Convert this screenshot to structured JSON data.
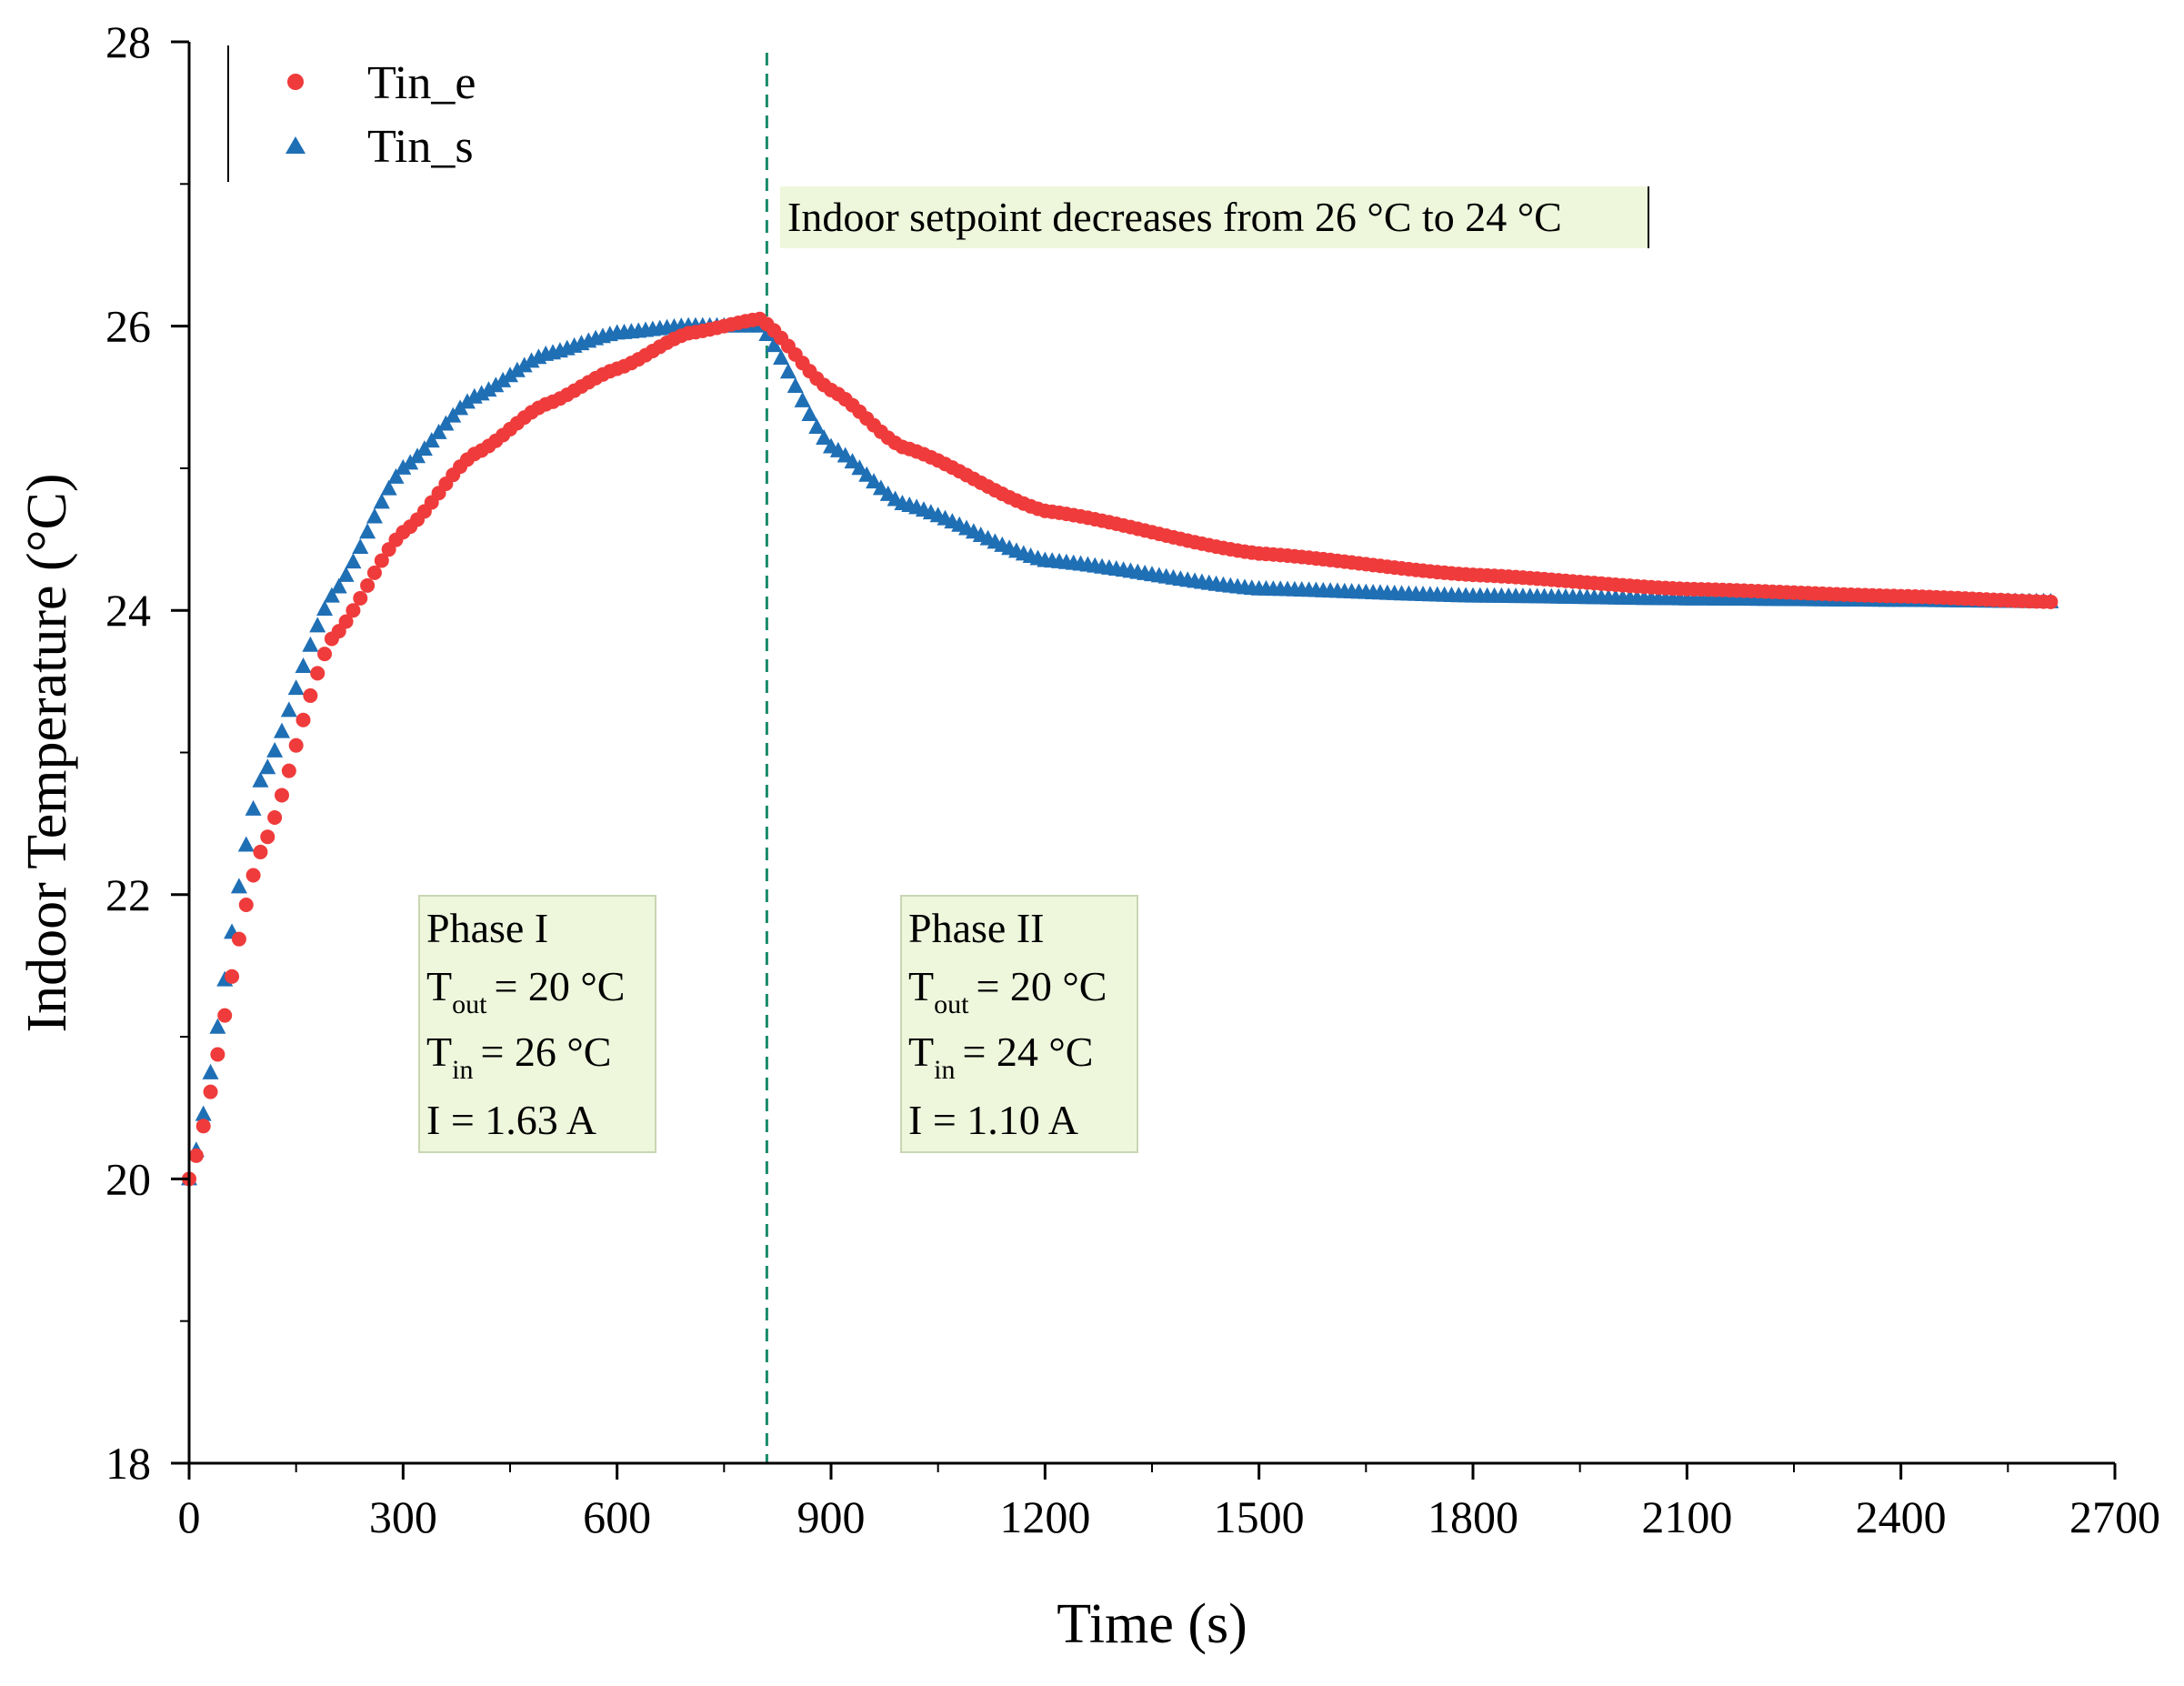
{
  "chart_data": {
    "type": "scatter",
    "xlabel": "Time (s)",
    "ylabel": "Indoor Temperature (°C)",
    "xlim": [
      0,
      2700
    ],
    "ylim": [
      18,
      28
    ],
    "xticks": [
      0,
      300,
      600,
      900,
      1200,
      1500,
      1800,
      2100,
      2400,
      2700
    ],
    "yticks": [
      18,
      20,
      22,
      24,
      26,
      28
    ],
    "legend_position": "top-left",
    "series": [
      {
        "name": "Tin_e",
        "marker": "circle",
        "color": "#ef3b3b",
        "x_range": [
          0,
          2610
        ],
        "description": "Phase I rises from 20 to 26; Phase II decays from 26 toward 24 (slower)",
        "key_points": [
          [
            0,
            20.0
          ],
          [
            100,
            22.3
          ],
          [
            200,
            23.8
          ],
          [
            300,
            24.55
          ],
          [
            400,
            25.1
          ],
          [
            500,
            25.45
          ],
          [
            600,
            25.7
          ],
          [
            700,
            25.95
          ],
          [
            800,
            26.05
          ],
          [
            900,
            25.55
          ],
          [
            1000,
            25.15
          ],
          [
            1200,
            24.7
          ],
          [
            1500,
            24.4
          ],
          [
            1800,
            24.25
          ],
          [
            2100,
            24.15
          ],
          [
            2400,
            24.1
          ],
          [
            2610,
            24.06
          ]
        ]
      },
      {
        "name": "Tin_s",
        "marker": "triangle",
        "color": "#1f6fb5",
        "x_range": [
          0,
          2610
        ],
        "description": "Phase I rises faster from 20 to 26; Phase II decays faster toward 24",
        "key_points": [
          [
            0,
            20.0
          ],
          [
            100,
            22.8
          ],
          [
            200,
            24.1
          ],
          [
            300,
            25.0
          ],
          [
            400,
            25.5
          ],
          [
            500,
            25.8
          ],
          [
            600,
            25.95
          ],
          [
            700,
            26.0
          ],
          [
            800,
            26.0
          ],
          [
            900,
            25.15
          ],
          [
            1000,
            24.75
          ],
          [
            1200,
            24.35
          ],
          [
            1500,
            24.15
          ],
          [
            1800,
            24.1
          ],
          [
            2100,
            24.08
          ],
          [
            2400,
            24.07
          ],
          [
            2610,
            24.06
          ]
        ]
      }
    ],
    "vline": {
      "x": 810,
      "style": "dashed",
      "color": "#1a8a6a"
    },
    "annotations": {
      "setpoint": "Indoor setpoint decreases from 26 °C to 24 °C",
      "phase1": {
        "title": "Phase I",
        "tout_main": "T",
        "tout_sub": "out",
        "tout_val": "= 20 °C",
        "tin_main": "T",
        "tin_sub": "in",
        "tin_val": "= 26  °C",
        "current": "I = 1.63 A"
      },
      "phase2": {
        "title": "Phase II",
        "tout_main": "T",
        "tout_sub": "out",
        "tout_val": "= 20 °C",
        "tin_main": "T",
        "tin_sub": "in",
        "tin_val": "= 24  °C",
        "current": "I = 1.10 A"
      }
    },
    "annotation_box_color": "#eef6dc"
  }
}
